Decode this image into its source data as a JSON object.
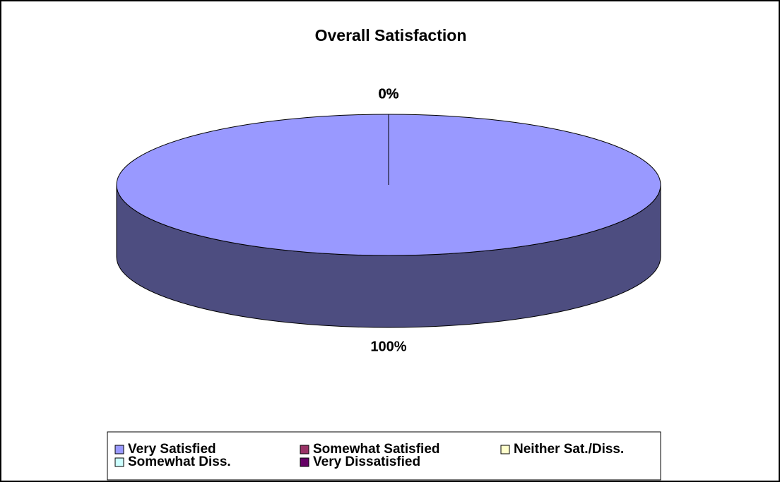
{
  "chart_data": {
    "type": "pie",
    "title": "Overall Satisfaction",
    "categories": [
      "Very Satisfied",
      "Somewhat Satisfied",
      "Neither Sat./Diss.",
      "Somewhat Diss.",
      "Very Dissatisfied"
    ],
    "values": [
      100,
      0,
      0,
      0,
      0
    ],
    "value_labels": [
      "100%",
      "0%",
      "0%",
      "0%",
      "0%"
    ],
    "colors": [
      "#9999ff",
      "#993366",
      "#ffffcc",
      "#ccffff",
      "#660066"
    ],
    "legend": "bottom"
  }
}
